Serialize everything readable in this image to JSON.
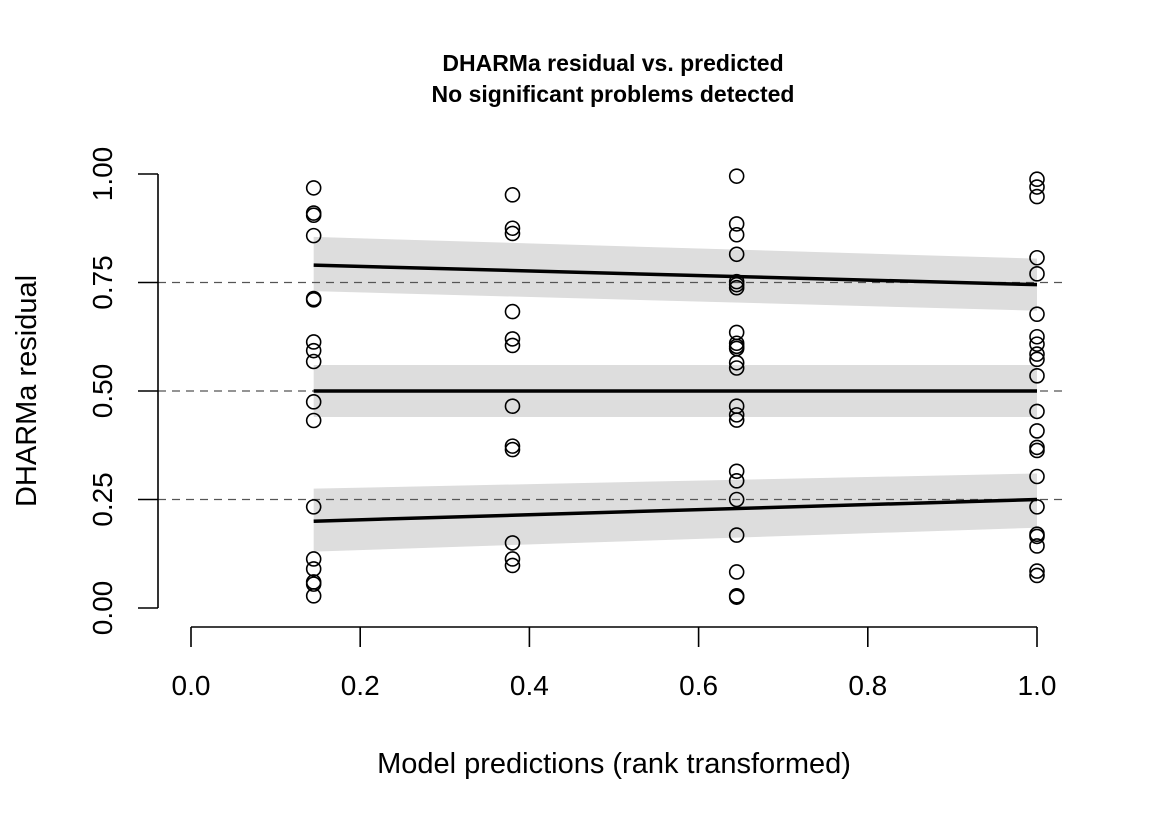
{
  "chart_data": {
    "type": "scatter",
    "title": "DHARMa residual vs. predicted",
    "subtitle": "No significant problems detected",
    "xlabel": "Model predictions (rank transformed)",
    "ylabel": "DHARMa residual",
    "xlim": [
      0.0,
      1.0
    ],
    "ylim": [
      0.0,
      1.0
    ],
    "x_ticks": [
      "0.0",
      "0.2",
      "0.4",
      "0.6",
      "0.8",
      "1.0"
    ],
    "y_ticks": [
      "0.00",
      "0.25",
      "0.50",
      "0.75",
      "1.00"
    ],
    "reference_lines": [
      0.25,
      0.5,
      0.75
    ],
    "colors": {
      "band": "#dddddd",
      "line": "#000000",
      "reference": "#555555",
      "point": "#000000"
    },
    "points": [
      {
        "x": 0.145,
        "y": 0.968
      },
      {
        "x": 0.145,
        "y": 0.91
      },
      {
        "x": 0.145,
        "y": 0.905
      },
      {
        "x": 0.145,
        "y": 0.858
      },
      {
        "x": 0.145,
        "y": 0.713
      },
      {
        "x": 0.145,
        "y": 0.71
      },
      {
        "x": 0.145,
        "y": 0.613
      },
      {
        "x": 0.145,
        "y": 0.593
      },
      {
        "x": 0.145,
        "y": 0.568
      },
      {
        "x": 0.145,
        "y": 0.475
      },
      {
        "x": 0.145,
        "y": 0.432
      },
      {
        "x": 0.145,
        "y": 0.233
      },
      {
        "x": 0.145,
        "y": 0.113
      },
      {
        "x": 0.145,
        "y": 0.09
      },
      {
        "x": 0.145,
        "y": 0.06
      },
      {
        "x": 0.145,
        "y": 0.055
      },
      {
        "x": 0.145,
        "y": 0.028
      },
      {
        "x": 0.38,
        "y": 0.952
      },
      {
        "x": 0.38,
        "y": 0.875
      },
      {
        "x": 0.38,
        "y": 0.863
      },
      {
        "x": 0.38,
        "y": 0.683
      },
      {
        "x": 0.38,
        "y": 0.62
      },
      {
        "x": 0.38,
        "y": 0.605
      },
      {
        "x": 0.38,
        "y": 0.465
      },
      {
        "x": 0.38,
        "y": 0.373
      },
      {
        "x": 0.38,
        "y": 0.365
      },
      {
        "x": 0.38,
        "y": 0.15
      },
      {
        "x": 0.38,
        "y": 0.113
      },
      {
        "x": 0.38,
        "y": 0.098
      },
      {
        "x": 0.645,
        "y": 0.995
      },
      {
        "x": 0.645,
        "y": 0.885
      },
      {
        "x": 0.645,
        "y": 0.86
      },
      {
        "x": 0.645,
        "y": 0.815
      },
      {
        "x": 0.645,
        "y": 0.752
      },
      {
        "x": 0.645,
        "y": 0.745
      },
      {
        "x": 0.645,
        "y": 0.738
      },
      {
        "x": 0.645,
        "y": 0.635
      },
      {
        "x": 0.645,
        "y": 0.61
      },
      {
        "x": 0.645,
        "y": 0.603
      },
      {
        "x": 0.645,
        "y": 0.598
      },
      {
        "x": 0.645,
        "y": 0.565
      },
      {
        "x": 0.645,
        "y": 0.553
      },
      {
        "x": 0.645,
        "y": 0.465
      },
      {
        "x": 0.645,
        "y": 0.445
      },
      {
        "x": 0.645,
        "y": 0.433
      },
      {
        "x": 0.645,
        "y": 0.315
      },
      {
        "x": 0.645,
        "y": 0.293
      },
      {
        "x": 0.645,
        "y": 0.25
      },
      {
        "x": 0.645,
        "y": 0.168
      },
      {
        "x": 0.645,
        "y": 0.083
      },
      {
        "x": 0.645,
        "y": 0.028
      },
      {
        "x": 0.645,
        "y": 0.025
      },
      {
        "x": 1.0,
        "y": 0.988
      },
      {
        "x": 1.0,
        "y": 0.97
      },
      {
        "x": 1.0,
        "y": 0.948
      },
      {
        "x": 1.0,
        "y": 0.807
      },
      {
        "x": 1.0,
        "y": 0.77
      },
      {
        "x": 1.0,
        "y": 0.677
      },
      {
        "x": 1.0,
        "y": 0.625
      },
      {
        "x": 1.0,
        "y": 0.608
      },
      {
        "x": 1.0,
        "y": 0.585
      },
      {
        "x": 1.0,
        "y": 0.573
      },
      {
        "x": 1.0,
        "y": 0.535
      },
      {
        "x": 1.0,
        "y": 0.453
      },
      {
        "x": 1.0,
        "y": 0.408
      },
      {
        "x": 1.0,
        "y": 0.37
      },
      {
        "x": 1.0,
        "y": 0.363
      },
      {
        "x": 1.0,
        "y": 0.303
      },
      {
        "x": 1.0,
        "y": 0.233
      },
      {
        "x": 1.0,
        "y": 0.17
      },
      {
        "x": 1.0,
        "y": 0.165
      },
      {
        "x": 1.0,
        "y": 0.143
      },
      {
        "x": 1.0,
        "y": 0.085
      },
      {
        "x": 1.0,
        "y": 0.075
      }
    ],
    "quantile_fits": [
      {
        "quantile": 0.75,
        "x": [
          0.145,
          1.0
        ],
        "y": [
          0.79,
          0.745
        ],
        "lower": [
          0.73,
          0.685
        ],
        "upper": [
          0.855,
          0.805
        ]
      },
      {
        "quantile": 0.5,
        "x": [
          0.145,
          1.0
        ],
        "y": [
          0.5,
          0.5
        ],
        "lower": [
          0.44,
          0.44
        ],
        "upper": [
          0.56,
          0.56
        ]
      },
      {
        "quantile": 0.25,
        "x": [
          0.145,
          1.0
        ],
        "y": [
          0.2,
          0.25
        ],
        "lower": [
          0.13,
          0.185
        ],
        "upper": [
          0.275,
          0.31
        ]
      }
    ]
  }
}
